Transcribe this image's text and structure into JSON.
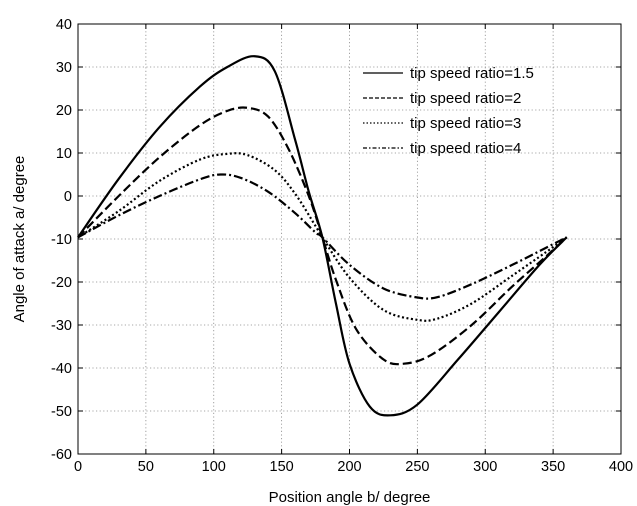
{
  "chart_data": {
    "type": "line",
    "title": "",
    "xlabel": "Position angle b/ degree",
    "ylabel": "Angle of attack a/ degree",
    "xlim": [
      0,
      400
    ],
    "ylim": [
      -60,
      40
    ],
    "xticks": [
      0,
      50,
      100,
      150,
      200,
      250,
      300,
      350,
      400
    ],
    "yticks": [
      -60,
      -50,
      -40,
      -30,
      -20,
      -10,
      0,
      10,
      20,
      30,
      40
    ],
    "xtick_labels": [
      "0",
      "50",
      "100",
      "150",
      "200",
      "250",
      "300",
      "350",
      "400"
    ],
    "ytick_labels": [
      "-60",
      "-50",
      "-40",
      "-30",
      "-20",
      "-10",
      "0",
      "10",
      "20",
      "30",
      "40"
    ],
    "grid": true,
    "grid_style": "dotted",
    "legend_position": "top-right",
    "line_color": "#000000",
    "series": [
      {
        "name": "tip speed ratio=1.5",
        "dash": "solid",
        "x": [
          0,
          30,
          60,
          90,
          110,
          130,
          145,
          160,
          170,
          180,
          190,
          200,
          215,
          230,
          250,
          280,
          310,
          340,
          360
        ],
        "y": [
          -9.6,
          4,
          16,
          25.5,
          30,
          32.5,
          29,
          13,
          1,
          -9.6,
          -25,
          -39,
          -49,
          -51,
          -48.5,
          -38,
          -27,
          -16,
          -9.6
        ]
      },
      {
        "name": "tip speed ratio=2",
        "dash": "dashed",
        "x": [
          0,
          30,
          60,
          90,
          110,
          125,
          140,
          155,
          170,
          180,
          190,
          205,
          225,
          240,
          260,
          290,
          320,
          345,
          360
        ],
        "y": [
          -9.6,
          0,
          9,
          16.5,
          19.8,
          20.5,
          18.5,
          11,
          0,
          -9.6,
          -19.5,
          -31,
          -38,
          -39,
          -37,
          -30,
          -21,
          -14,
          -9.6
        ]
      },
      {
        "name": "tip speed ratio=3",
        "dash": "dotted",
        "x": [
          0,
          30,
          60,
          90,
          110,
          125,
          145,
          160,
          175,
          180,
          200,
          225,
          250,
          265,
          290,
          320,
          345,
          360
        ],
        "y": [
          -9.6,
          -3.5,
          3.5,
          8.5,
          9.8,
          9.5,
          6,
          0.5,
          -7,
          -9.6,
          -19,
          -26.5,
          -28.8,
          -28.5,
          -25,
          -18.5,
          -13,
          -9.6
        ]
      },
      {
        "name": "tip speed ratio=4",
        "dash": "dashdot",
        "x": [
          0,
          30,
          60,
          90,
          105,
          120,
          140,
          160,
          175,
          180,
          200,
          225,
          250,
          265,
          290,
          320,
          345,
          360
        ],
        "y": [
          -9.6,
          -4.5,
          0,
          3.9,
          5,
          4.2,
          1,
          -4,
          -8.5,
          -9.6,
          -16,
          -21.5,
          -23.6,
          -23.5,
          -20.5,
          -16,
          -12,
          -9.6
        ]
      }
    ]
  }
}
